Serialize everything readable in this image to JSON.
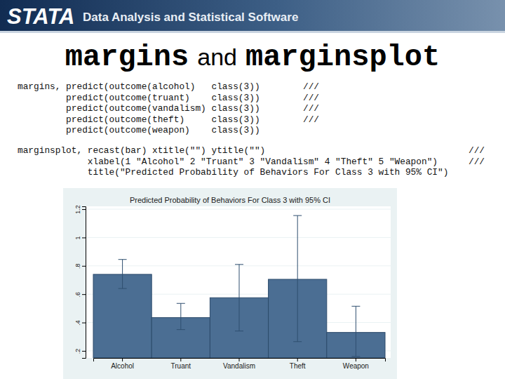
{
  "header": {
    "logo": "STATA",
    "tagline": "Data Analysis and Statistical Software"
  },
  "slide_title": [
    "margins",
    "and",
    "marginsplot"
  ],
  "code": [
    [
      {
        "text": "margins, predict(outcome(alcohol)   class(3))",
        "cont": "///"
      },
      {
        "text": "         predict(outcome(truant)    class(3))",
        "cont": "///"
      },
      {
        "text": "         predict(outcome(vandalism) class(3))",
        "cont": "///"
      },
      {
        "text": "         predict(outcome(theft)     class(3))",
        "cont": "///"
      },
      {
        "text": "         predict(outcome(weapon)    class(3))"
      }
    ],
    [
      {
        "text": "marginsplot, recast(bar) xtitle(\"\") ytitle(\"\")",
        "cont": "///"
      },
      {
        "text": "             xlabel(1 \"Alcohol\" 2 \"Truant\" 3 \"Vandalism\" 4 \"Theft\" 5 \"Weapon\")",
        "cont": "///"
      },
      {
        "text": "             title(\"Predicted Probability of Behaviors For Class 3 with 95% CI\")"
      }
    ]
  ],
  "chart_data": {
    "type": "bar",
    "title": "Predicted Probability of Behaviors For Class 3 with 95% CI",
    "categories": [
      "Alcohol",
      "Truant",
      "Vandalism",
      "Theft",
      "Weapon"
    ],
    "values": [
      0.74,
      0.435,
      0.575,
      0.705,
      0.33
    ],
    "ci_lower": [
      0.64,
      0.35,
      0.34,
      0.265,
      0.16
    ],
    "ci_upper": [
      0.845,
      0.535,
      0.81,
      1.155,
      0.515
    ],
    "color": "#4b6e93",
    "ylim": [
      0.15,
      1.22
    ],
    "yticks": [
      {
        "value": 0.2,
        "label": ".2"
      },
      {
        "value": 0.4,
        "label": ".4"
      },
      {
        "value": 0.6,
        "label": ".6"
      },
      {
        "value": 0.8,
        "label": ".8"
      },
      1,
      1.2
    ],
    "grid": true
  }
}
